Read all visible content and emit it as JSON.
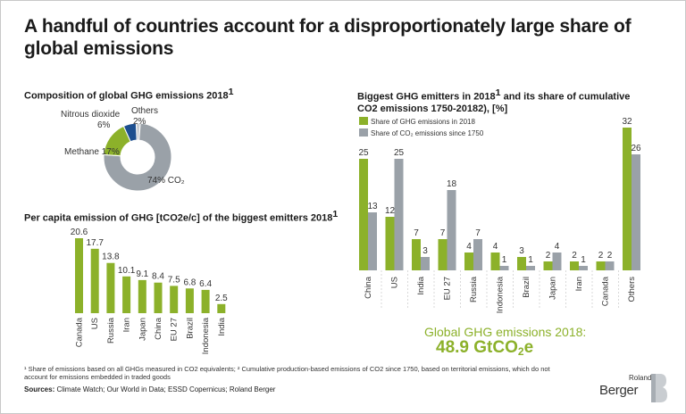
{
  "title": "A handful of countries account for a disproportionately large share of global emissions",
  "chart_data": [
    {
      "type": "pie",
      "title": "Composition of global GHG emissions 2018",
      "title_sup": "1",
      "categories": [
        "CO₂",
        "Methane",
        "Nitrous dioxide",
        "Others"
      ],
      "values": [
        74,
        17,
        6,
        2
      ],
      "labels": [
        "74% CO₂",
        "Methane 17%",
        "6%",
        "2%"
      ],
      "label_names": [
        "Nitrous dioxide",
        "Others"
      ],
      "colors": [
        "#9aa1a8",
        "#8cb12a",
        "#1d4f8f",
        "#c9cdd1"
      ]
    },
    {
      "type": "bar",
      "title": "Per capita emission of GHG [tCO2e/c] of the biggest emitters 2018",
      "title_sup": "1",
      "categories": [
        "Canada",
        "US",
        "Russia",
        "Iran",
        "Japan",
        "China",
        "EU 27",
        "Brazil",
        "Indonesia",
        "India"
      ],
      "values": [
        20.6,
        17.7,
        13.8,
        10.1,
        9.1,
        8.4,
        7.5,
        6.8,
        6.4,
        2.5
      ],
      "value_labels": [
        "20.6",
        "17.7",
        "13.8",
        "10.1",
        "9.1",
        "8.4",
        "7.5",
        "6.8",
        "6.4",
        "2.5"
      ],
      "color": "#8cb12a",
      "ylim": [
        0,
        20.6
      ]
    },
    {
      "type": "bar",
      "title": "Biggest GHG emitters in 2018",
      "title_sup": "1",
      "title_rest": " and its share of cumulative",
      "title_line2": "CO2 emissions 1750-20182), [%]",
      "categories": [
        "China",
        "US",
        "India",
        "EU 27",
        "Russia",
        "Indonesia",
        "Brazil",
        "Japan",
        "Iran",
        "Canada",
        "Others"
      ],
      "series": [
        {
          "name": "Share of GHG emissions in 2018",
          "values": [
            25,
            12,
            7,
            7,
            4,
            4,
            3,
            2,
            2,
            2,
            32
          ],
          "color": "#8cb12a"
        },
        {
          "name": "Share of CO₂ emissions since 1750",
          "values": [
            13,
            25,
            3,
            18,
            7,
            1,
            1,
            4,
            1,
            2,
            26
          ],
          "color": "#9aa1a8"
        }
      ],
      "ylim": [
        0,
        32
      ]
    }
  ],
  "total": {
    "label": "Global GHG emissions 2018:",
    "value": "48.9 GtCO",
    "value_sub": "2",
    "value_suffix": "e"
  },
  "footnote": "¹ Share of emissions based on all GHGs measured in CO2 equivalents; ² Cumulative production-based emissions of CO2 since 1750, based on territorial emissions, which do not account for emissions embedded in traded goods",
  "sources_label": "Sources:",
  "sources": " Climate Watch; Our World in Data; ESSD Copernicus; Roland Berger",
  "logo": {
    "small": "Roland",
    "big": "Berger"
  }
}
